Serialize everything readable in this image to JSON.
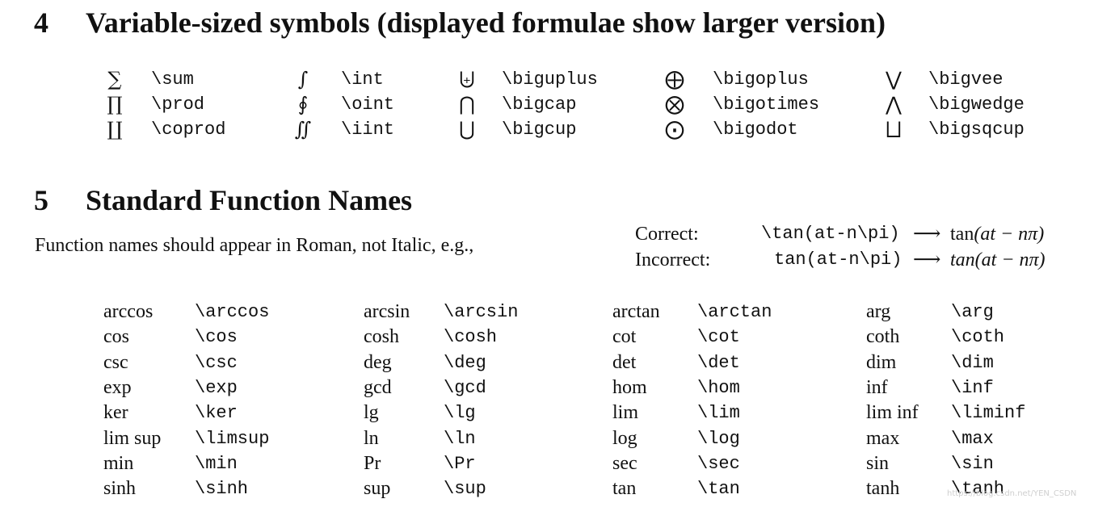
{
  "section4": {
    "number": "4",
    "title": "Variable-sized symbols (displayed formulae show larger version)",
    "rows": [
      [
        {
          "glyph": "∑",
          "command": "\\sum"
        },
        {
          "glyph": "∫",
          "command": "\\int"
        },
        {
          "glyph": "⨄",
          "command": "\\biguplus"
        },
        {
          "glyph": "⨁",
          "command": "\\bigoplus"
        },
        {
          "glyph": "⋁",
          "command": "\\bigvee"
        }
      ],
      [
        {
          "glyph": "∏",
          "command": "\\prod"
        },
        {
          "glyph": "∮",
          "command": "\\oint"
        },
        {
          "glyph": "⋂",
          "command": "\\bigcap"
        },
        {
          "glyph": "⨂",
          "command": "\\bigotimes"
        },
        {
          "glyph": "⋀",
          "command": "\\bigwedge"
        }
      ],
      [
        {
          "glyph": "∐",
          "command": "\\coprod"
        },
        {
          "glyph": "∬",
          "command": "\\iint"
        },
        {
          "glyph": "⋃",
          "command": "\\bigcup"
        },
        {
          "glyph": "⨀",
          "command": "\\bigodot"
        },
        {
          "glyph": "⨆",
          "command": "\\bigsqcup"
        }
      ]
    ]
  },
  "section5": {
    "number": "5",
    "title": "Standard Function Names",
    "intro": "Function names should appear in Roman, not Italic, e.g.,",
    "examples": [
      {
        "label": "Correct:",
        "code": "\\tan(at-n\\pi)",
        "arrow": "⟶",
        "result_fn": "tan",
        "result_args": "(at − nπ)"
      },
      {
        "label": "Incorrect:",
        "code": "tan(at-n\\pi)",
        "arrow": "⟶",
        "result_fn": "tan",
        "result_args": "(at − nπ)"
      }
    ],
    "rows": [
      [
        {
          "name": "arccos",
          "command": "\\arccos"
        },
        {
          "name": "arcsin",
          "command": "\\arcsin"
        },
        {
          "name": "arctan",
          "command": "\\arctan"
        },
        {
          "name": "arg",
          "command": "\\arg"
        }
      ],
      [
        {
          "name": "cos",
          "command": "\\cos"
        },
        {
          "name": "cosh",
          "command": "\\cosh"
        },
        {
          "name": "cot",
          "command": "\\cot"
        },
        {
          "name": "coth",
          "command": "\\coth"
        }
      ],
      [
        {
          "name": "csc",
          "command": "\\csc"
        },
        {
          "name": "deg",
          "command": "\\deg"
        },
        {
          "name": "det",
          "command": "\\det"
        },
        {
          "name": "dim",
          "command": "\\dim"
        }
      ],
      [
        {
          "name": "exp",
          "command": "\\exp"
        },
        {
          "name": "gcd",
          "command": "\\gcd"
        },
        {
          "name": "hom",
          "command": "\\hom"
        },
        {
          "name": "inf",
          "command": "\\inf"
        }
      ],
      [
        {
          "name": "ker",
          "command": "\\ker"
        },
        {
          "name": "lg",
          "command": "\\lg"
        },
        {
          "name": "lim",
          "command": "\\lim"
        },
        {
          "name": "lim inf",
          "command": "\\liminf"
        }
      ],
      [
        {
          "name": "lim sup",
          "command": "\\limsup"
        },
        {
          "name": "ln",
          "command": "\\ln"
        },
        {
          "name": "log",
          "command": "\\log"
        },
        {
          "name": "max",
          "command": "\\max"
        }
      ],
      [
        {
          "name": "min",
          "command": "\\min"
        },
        {
          "name": "Pr",
          "command": "\\Pr"
        },
        {
          "name": "sec",
          "command": "\\sec"
        },
        {
          "name": "sin",
          "command": "\\sin"
        }
      ],
      [
        {
          "name": "sinh",
          "command": "\\sinh"
        },
        {
          "name": "sup",
          "command": "\\sup"
        },
        {
          "name": "tan",
          "command": "\\tan"
        },
        {
          "name": "tanh",
          "command": "\\tanh"
        }
      ]
    ]
  },
  "watermark": "https://blog.csdn.net/YEN_CSDN"
}
